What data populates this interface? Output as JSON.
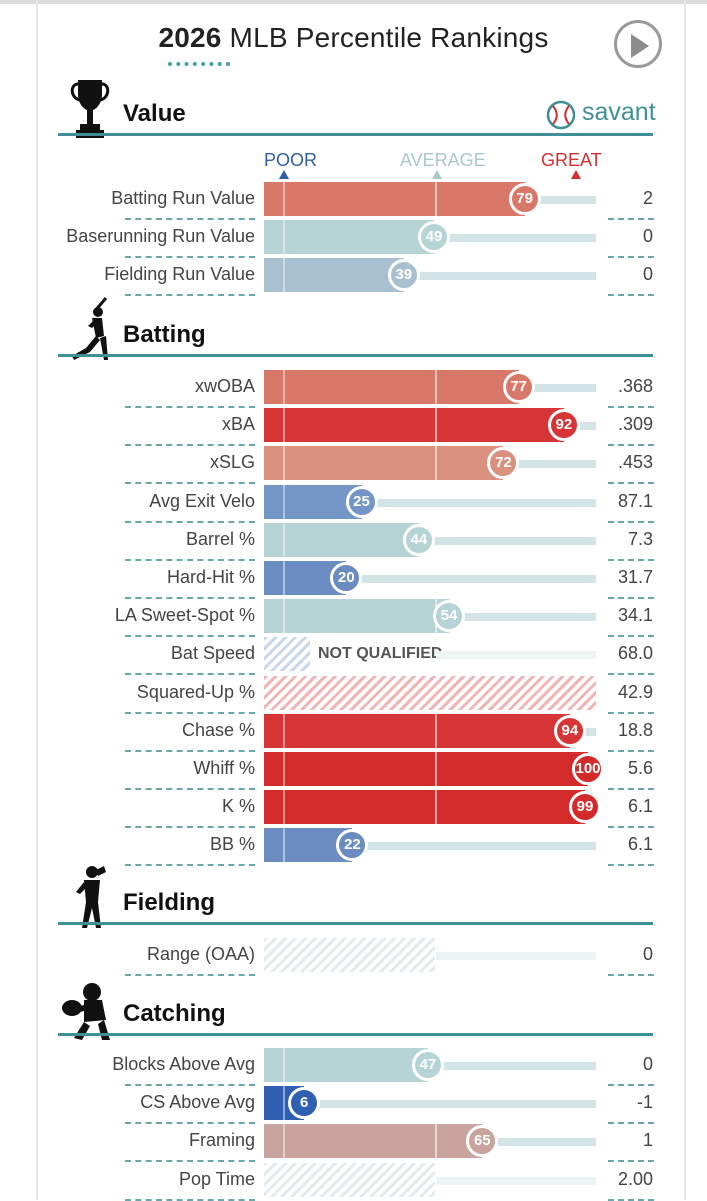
{
  "header": {
    "title_year": "2026",
    "title_rest": "MLB Percentile Rankings",
    "play_icon": "play-icon"
  },
  "brand": {
    "name": "savant",
    "icon": "baseball-icon"
  },
  "scale": {
    "poor": "POOR",
    "average": "AVERAGE",
    "great": "GREAT",
    "colors": {
      "poor": "#2f5fa8",
      "average": "#a9c8cc",
      "great": "#d32f2f"
    }
  },
  "sections": {
    "value": {
      "title": "Value",
      "icon": "trophy-icon"
    },
    "batting": {
      "title": "Batting",
      "icon": "batter-icon"
    },
    "fielding": {
      "title": "Fielding",
      "icon": "fielder-icon"
    },
    "catching": {
      "title": "Catching",
      "icon": "catcher-icon"
    }
  },
  "rows": {
    "value": [
      {
        "metric": "Batting Run Value",
        "percentile": 79,
        "value": "2",
        "color": "#d87868"
      },
      {
        "metric": "Baserunning Run Value",
        "percentile": 49,
        "value": "0",
        "color": "#b6d3d6"
      },
      {
        "metric": "Fielding Run Value",
        "percentile": 39,
        "value": "0",
        "color": "#a8c0d0"
      }
    ],
    "batting": [
      {
        "metric": "xwOBA",
        "percentile": 77,
        "value": ".368",
        "color": "#d87868"
      },
      {
        "metric": "xBA",
        "percentile": 92,
        "value": ".309",
        "color": "#d73535"
      },
      {
        "metric": "xSLG",
        "percentile": 72,
        "value": ".453",
        "color": "#d9907e"
      },
      {
        "metric": "Avg Exit Velo",
        "percentile": 25,
        "value": "87.1",
        "color": "#7396c6"
      },
      {
        "metric": "Barrel %",
        "percentile": 44,
        "value": "7.3",
        "color": "#b6d3d6"
      },
      {
        "metric": "Hard-Hit %",
        "percentile": 20,
        "value": "31.7",
        "color": "#6a8cc0"
      },
      {
        "metric": "LA Sweet-Spot %",
        "percentile": 54,
        "value": "34.1",
        "color": "#b6d3d6"
      },
      {
        "metric": "Bat Speed",
        "status": "NOT QUALIFIED",
        "value": "68.0",
        "style": "nq"
      },
      {
        "metric": "Squared-Up %",
        "value": "42.9",
        "style": "hatch-red"
      },
      {
        "metric": "Chase %",
        "percentile": 94,
        "value": "18.8",
        "color": "#d73535"
      },
      {
        "metric": "Whiff %",
        "percentile": 100,
        "value": "5.6",
        "color": "#d32b2b"
      },
      {
        "metric": "K %",
        "percentile": 99,
        "value": "6.1",
        "color": "#d32b2b"
      },
      {
        "metric": "BB %",
        "percentile": 22,
        "value": "6.1",
        "color": "#6a8cc0"
      }
    ],
    "fielding": [
      {
        "metric": "Range (OAA)",
        "value": "0",
        "style": "hatch-light"
      }
    ],
    "catching": [
      {
        "metric": "Blocks Above Avg",
        "percentile": 47,
        "value": "0",
        "color": "#b6d3d6"
      },
      {
        "metric": "CS Above Avg",
        "percentile": 6,
        "value": "-1",
        "color": "#2f5fb0"
      },
      {
        "metric": "Framing",
        "percentile": 65,
        "value": "1",
        "color": "#c9a49e"
      },
      {
        "metric": "Pop Time",
        "value": "2.00",
        "style": "hatch-light"
      }
    ]
  }
}
